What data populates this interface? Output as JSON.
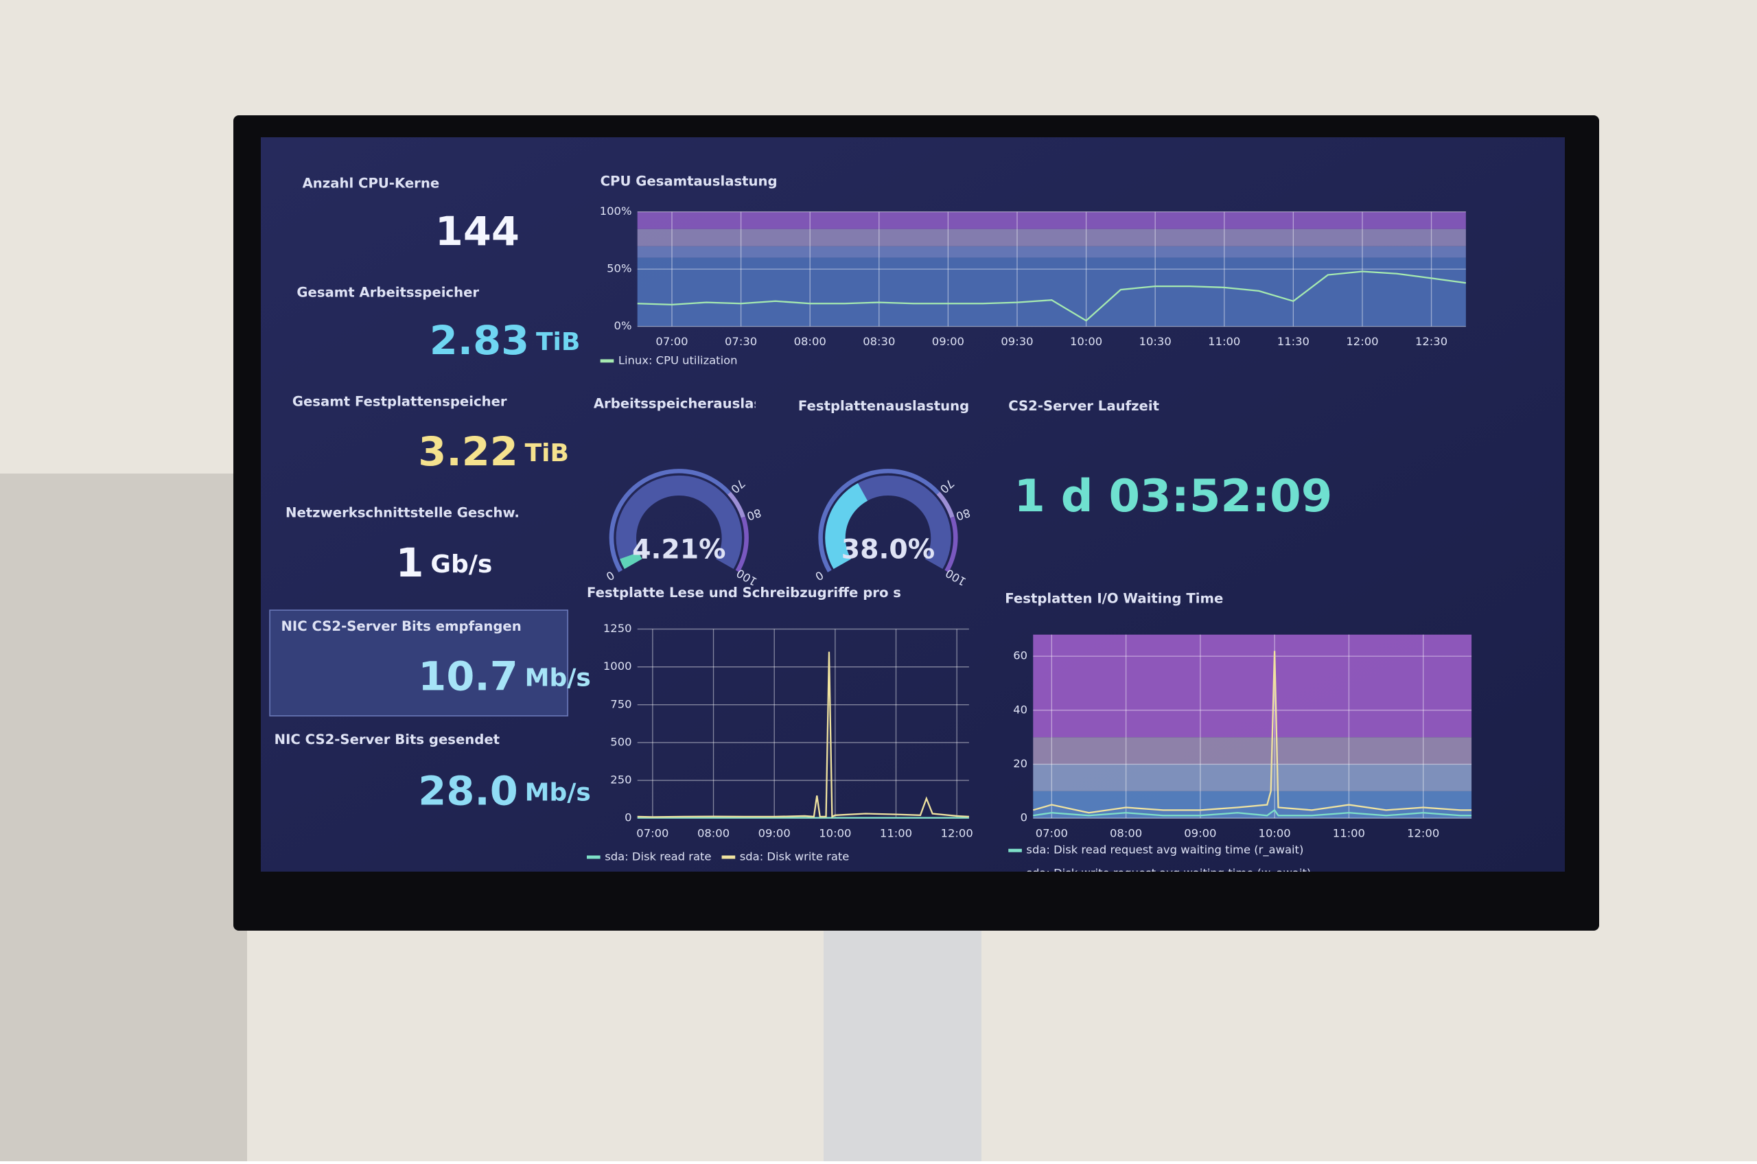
{
  "stats": [
    {
      "title": "Anzahl CPU-Kerne",
      "value": "144",
      "color": "#f4f6ff"
    },
    {
      "title": "Gesamt Arbeitsspeicher",
      "value": "2.83",
      "unit": "TiB",
      "color": "#6fd6f2"
    },
    {
      "title": "Gesamt Festplattenspeicher",
      "value": "3.22",
      "unit": "TiB",
      "color": "#f5e28e"
    },
    {
      "title": "Netzwerkschnittstelle Geschw.",
      "value": "1",
      "unit": "Gb/s",
      "color": "#f4f6ff"
    },
    {
      "title": "NIC CS2-Server Bits empfangen",
      "value": "10.7",
      "unit": "Mb/s",
      "color": "#a6e4f7"
    },
    {
      "title": "NIC CS2-Server Bits gesendet",
      "value": "28.0",
      "unit": "Mb/s",
      "color": "#8fdcf5"
    }
  ],
  "cpu_chart": {
    "title": "CPU Gesamtauslastung",
    "x": [
      6.75,
      7,
      7.25,
      7.5,
      7.75,
      8,
      8.25,
      8.5,
      8.75,
      9,
      9.25,
      9.5,
      9.75,
      10,
      10.25,
      10.5,
      10.75,
      11,
      11.25,
      11.5,
      11.75,
      12,
      12.25,
      12.5,
      12.75
    ],
    "xlim": [
      6.75,
      12.75
    ],
    "xticks": [
      {
        "value": 7,
        "label": "07:00"
      },
      {
        "value": 7.5,
        "label": "07:30"
      },
      {
        "value": 8,
        "label": "08:00"
      },
      {
        "value": 8.5,
        "label": "08:30"
      },
      {
        "value": 9,
        "label": "09:00"
      },
      {
        "value": 9.5,
        "label": "09:30"
      },
      {
        "value": 10,
        "label": "10:00"
      },
      {
        "value": 10.5,
        "label": "10:30"
      },
      {
        "value": 11,
        "label": "11:00"
      },
      {
        "value": 11.5,
        "label": "11:30"
      },
      {
        "value": 12,
        "label": "12:00"
      },
      {
        "value": 12.5,
        "label": "12:30"
      }
    ],
    "ylim": [
      0,
      100
    ],
    "yticks": [
      {
        "value": 0,
        "label": "0%"
      },
      {
        "value": 50,
        "label": "50%"
      },
      {
        "value": 100,
        "label": "100%"
      }
    ],
    "bands": [
      {
        "from": 0,
        "to": 60,
        "color": "#4d6fb5"
      },
      {
        "from": 60,
        "to": 70,
        "color": "#6b7fc0"
      },
      {
        "from": 70,
        "to": 85,
        "color": "#8e86b8"
      },
      {
        "from": 85,
        "to": 100,
        "color": "#8a5cc0"
      }
    ],
    "series": [
      {
        "name": "Linux: CPU utilization",
        "color": "#a6eab0",
        "values": [
          20,
          19,
          21,
          20,
          22,
          20,
          20,
          21,
          20,
          20,
          20,
          21,
          23,
          5,
          32,
          35,
          35,
          34,
          31,
          22,
          45,
          48,
          46,
          42,
          38
        ]
      }
    ]
  },
  "gauges": [
    {
      "title": "Arbeitsspeicherauslastung",
      "value": {
        "value": 4.21,
        "label": "4.21%"
      },
      "color": "#5fd3b8",
      "ticks": [
        0,
        70,
        80,
        100
      ],
      "threshold_colors": [
        "#5b6fc4",
        "#9d8fd6",
        "#7a58c0"
      ]
    },
    {
      "title": "Festplattenauslastung",
      "value": {
        "value": 38.0,
        "label": "38.0%"
      },
      "color": "#62d0ee",
      "ticks": [
        0,
        70,
        80,
        100
      ],
      "threshold_colors": [
        "#5b6fc4",
        "#9d8fd6",
        "#7a58c0"
      ]
    }
  ],
  "uptime": {
    "title": "CS2-Server Laufzeit",
    "value": "1 d 03:52:09"
  },
  "disk_chart": {
    "title": "Festplatte Lese und Schreibzugriffe pro s",
    "x": [
      6.75,
      7,
      7.5,
      8,
      8.5,
      9,
      9.5,
      9.65,
      9.7,
      9.75,
      9.85,
      9.9,
      9.95,
      10,
      10.5,
      11,
      11.4,
      11.5,
      11.6,
      12,
      12.2
    ],
    "xlim": [
      6.75,
      12.2
    ],
    "xticks": [
      {
        "value": 7,
        "label": "07:00"
      },
      {
        "value": 8,
        "label": "08:00"
      },
      {
        "value": 9,
        "label": "09:00"
      },
      {
        "value": 10,
        "label": "10:00"
      },
      {
        "value": 11,
        "label": "11:00"
      },
      {
        "value": 12,
        "label": "12:00"
      }
    ],
    "ylim": [
      0,
      1250
    ],
    "yticks": [
      0,
      250,
      500,
      750,
      1000,
      1250
    ],
    "series": [
      {
        "name": "sda: Disk read rate",
        "color": "#7ee0c8",
        "values": [
          3,
          3,
          3,
          3,
          3,
          3,
          3,
          3,
          3,
          3,
          3,
          3,
          3,
          3,
          3,
          3,
          3,
          3,
          3,
          3,
          3
        ]
      },
      {
        "name": "sda: Disk write rate",
        "color": "#f0e3a0",
        "values": [
          10,
          8,
          10,
          12,
          10,
          10,
          15,
          10,
          150,
          10,
          10,
          1100,
          10,
          20,
          30,
          25,
          20,
          130,
          30,
          15,
          10
        ]
      }
    ]
  },
  "io_chart": {
    "title": "Festplatten I/O Waiting Time",
    "x": [
      6.75,
      7,
      7.5,
      8,
      8.5,
      9,
      9.5,
      9.9,
      9.95,
      10,
      10.05,
      10.5,
      11,
      11.5,
      12,
      12.5,
      12.65
    ],
    "xlim": [
      6.75,
      12.65
    ],
    "xticks": [
      {
        "value": 7,
        "label": "07:00"
      },
      {
        "value": 8,
        "label": "08:00"
      },
      {
        "value": 9,
        "label": "09:00"
      },
      {
        "value": 10,
        "label": "10:00"
      },
      {
        "value": 11,
        "label": "11:00"
      },
      {
        "value": 12,
        "label": "12:00"
      }
    ],
    "ylim": [
      0,
      68
    ],
    "yticks": [
      0,
      20,
      40,
      60
    ],
    "bands": [
      {
        "from": 0,
        "to": 10,
        "color": "#5a86c6"
      },
      {
        "from": 10,
        "to": 20,
        "color": "#8a9cc8"
      },
      {
        "from": 20,
        "to": 30,
        "color": "#9a8cb4"
      },
      {
        "from": 30,
        "to": 68,
        "color": "#9a5dc6"
      }
    ],
    "series": [
      {
        "name": "sda: Disk read request avg waiting time (r_await)",
        "color": "#7ee0c8",
        "values": [
          1,
          2,
          1,
          2,
          1,
          1,
          2,
          1,
          2,
          3,
          1,
          1,
          2,
          1,
          2,
          1,
          1
        ]
      },
      {
        "name": "sda: Disk write request avg waiting time (w_await)",
        "color": "#f0e3a0",
        "values": [
          3,
          5,
          2,
          4,
          3,
          3,
          4,
          5,
          10,
          62,
          4,
          3,
          5,
          3,
          4,
          3,
          3
        ]
      }
    ]
  }
}
